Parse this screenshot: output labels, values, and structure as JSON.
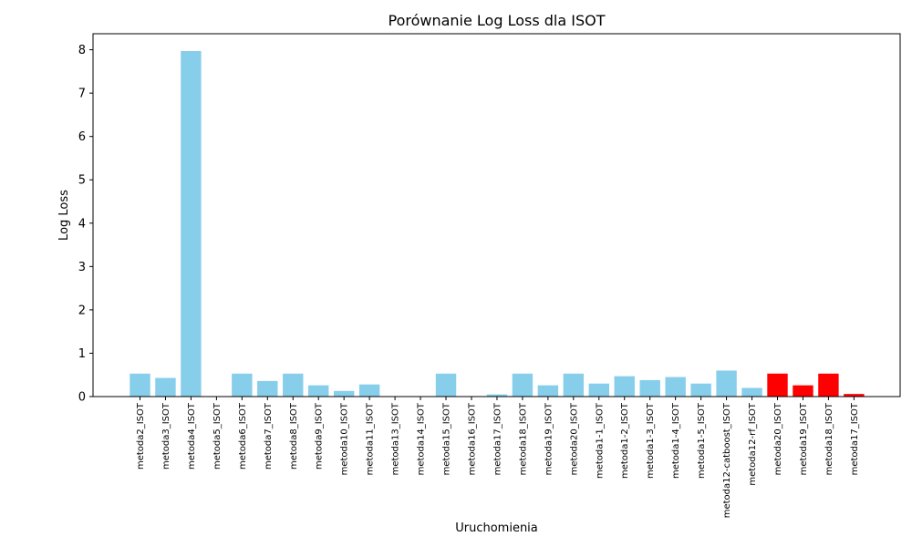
{
  "chart_data": {
    "type": "bar",
    "title": "Porównanie Log Loss dla ISOT",
    "xlabel": "Uruchomienia",
    "ylabel": "Log Loss",
    "ylim": [
      0,
      8.37
    ],
    "yticks": [
      0,
      1,
      2,
      3,
      4,
      5,
      6,
      7,
      8
    ],
    "grid": false,
    "legend": "none",
    "colors": {
      "default": "#87ceeb",
      "highlight": "#ff0000"
    },
    "categories": [
      "metoda2_ISOT",
      "metoda3_ISOT",
      "metoda4_ISOT",
      "metoda5_ISOT",
      "metoda6_ISOT",
      "metoda7_ISOT",
      "metoda8_ISOT",
      "metoda9_ISOT",
      "metoda10_ISOT",
      "metoda11_ISOT",
      "metoda13_ISOT",
      "metoda14_ISOT",
      "metoda15_ISOT",
      "metoda16_ISOT",
      "metoda17_ISOT",
      "metoda18_ISOT",
      "metoda19_ISOT",
      "metoda20_ISOT",
      "metoda1-1_ISOT",
      "metoda1-2_ISOT",
      "metoda1-3_ISOT",
      "metoda1-4_ISOT",
      "metoda1-5_ISOT",
      "metoda12-catboost_ISOT",
      "metoda12-rf_ISOT",
      "metoda20_ISOT",
      "metoda19_ISOT",
      "metoda18_ISOT",
      "metoda17_ISOT"
    ],
    "values": [
      0.53,
      0.43,
      7.97,
      0.0,
      0.53,
      0.36,
      0.53,
      0.26,
      0.13,
      0.28,
      0.0,
      0.0,
      0.53,
      0.0,
      0.05,
      0.53,
      0.26,
      0.53,
      0.3,
      0.47,
      0.38,
      0.45,
      0.3,
      0.6,
      0.2,
      0.53,
      0.26,
      0.53,
      0.06
    ],
    "highlighted": [
      false,
      false,
      false,
      false,
      false,
      false,
      false,
      false,
      false,
      false,
      false,
      false,
      false,
      false,
      false,
      false,
      false,
      false,
      false,
      false,
      false,
      false,
      false,
      false,
      false,
      true,
      true,
      true,
      true
    ]
  }
}
